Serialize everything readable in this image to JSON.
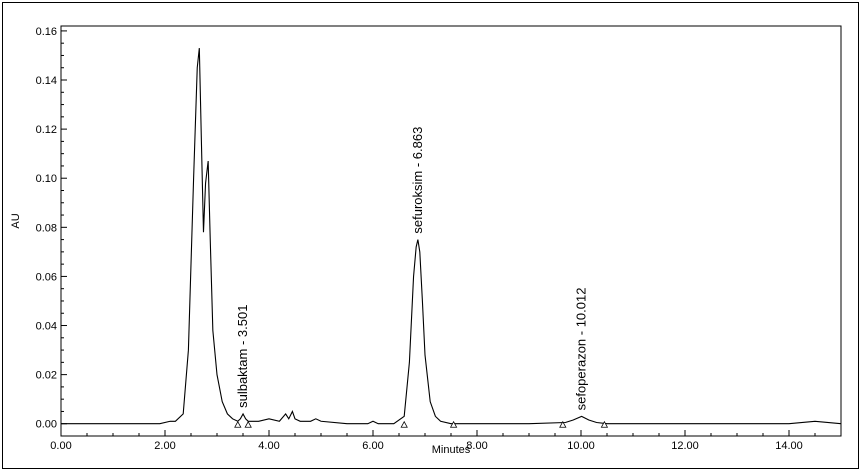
{
  "chart_data": {
    "type": "line",
    "title": "",
    "xlabel": "Minutes",
    "ylabel": "AU",
    "xlim": [
      0,
      15
    ],
    "ylim": [
      -0.005,
      0.162
    ],
    "x_ticks": [
      0,
      2,
      4,
      6,
      8,
      10,
      12,
      14
    ],
    "x_tick_labels": [
      "0.00",
      "2.00",
      "4.00",
      "6.00",
      "8.00",
      "10.00",
      "12.00",
      "14.00"
    ],
    "y_ticks": [
      0,
      0.02,
      0.04,
      0.06,
      0.08,
      0.1,
      0.12,
      0.14,
      0.16
    ],
    "y_tick_labels": [
      "0.00",
      "0.02",
      "0.04",
      "0.06",
      "0.08",
      "0.10",
      "0.12",
      "0.14",
      "0.16"
    ],
    "grid": false,
    "series": [
      {
        "x": [
          0.0,
          1.0,
          1.9,
          2.1,
          2.2,
          2.35,
          2.45,
          2.55,
          2.62,
          2.66,
          2.7,
          2.74,
          2.78,
          2.83,
          2.87,
          2.92,
          3.0,
          3.1,
          3.2,
          3.3,
          3.4,
          3.45,
          3.501,
          3.55,
          3.6,
          3.7,
          3.8,
          4.0,
          4.2,
          4.32,
          4.38,
          4.45,
          4.5,
          4.6,
          4.8,
          4.9,
          5.0,
          5.5,
          5.9,
          6.0,
          6.1,
          6.4,
          6.6,
          6.7,
          6.78,
          6.83,
          6.863,
          6.9,
          6.95,
          7.0,
          7.1,
          7.2,
          7.3,
          7.5,
          8.0,
          9.0,
          9.7,
          9.85,
          10.012,
          10.15,
          10.3,
          10.5,
          11.0,
          12.0,
          13.0,
          14.0,
          14.5,
          15.0
        ],
        "y": [
          0.0,
          0.0,
          0.0,
          0.001,
          0.001,
          0.004,
          0.03,
          0.1,
          0.145,
          0.153,
          0.115,
          0.078,
          0.098,
          0.107,
          0.075,
          0.038,
          0.02,
          0.009,
          0.004,
          0.002,
          0.001,
          0.002,
          0.004,
          0.002,
          0.001,
          0.001,
          0.001,
          0.002,
          0.001,
          0.004,
          0.002,
          0.005,
          0.002,
          0.001,
          0.001,
          0.002,
          0.001,
          0.0,
          0.0,
          0.001,
          0.0,
          0.0,
          0.003,
          0.025,
          0.06,
          0.072,
          0.075,
          0.07,
          0.05,
          0.028,
          0.009,
          0.003,
          0.001,
          0.0,
          0.0,
          0.0,
          0.0005,
          0.0015,
          0.003,
          0.0015,
          0.0005,
          0.0,
          0.0,
          0.0,
          0.0,
          0.0,
          0.001,
          0.0
        ]
      }
    ],
    "annotations": [
      {
        "label": "sulbaktam - 3.501",
        "x": 3.501,
        "y": 0.004
      },
      {
        "label": "sefuroksim - 6.863",
        "x": 6.863,
        "y": 0.075
      },
      {
        "label": "sefoperazon - 10.012",
        "x": 10.012,
        "y": 0.003
      }
    ],
    "integration_markers_x": [
      3.4,
      3.6,
      6.6,
      7.55,
      9.65,
      10.45
    ]
  }
}
